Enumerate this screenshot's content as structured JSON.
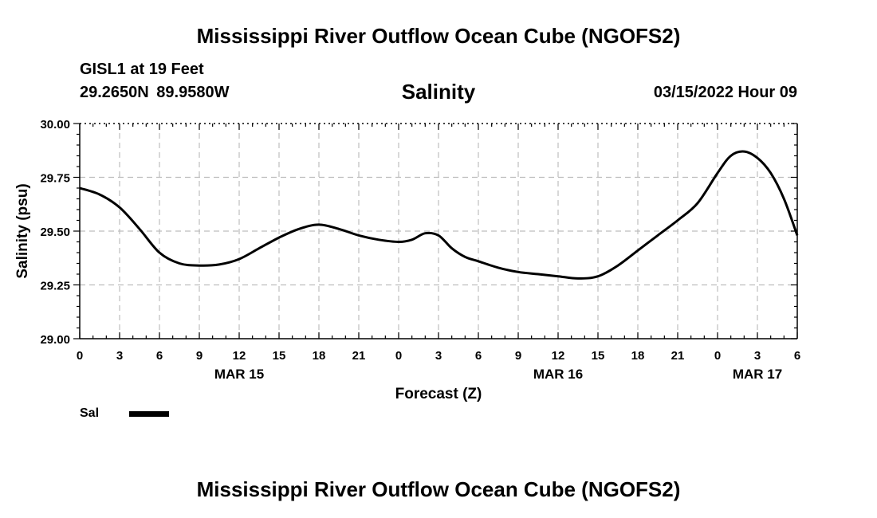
{
  "header": {
    "title": "Mississippi River Outflow Ocean Cube (NGOFS2)",
    "station": "GISL1 at 19 Feet",
    "coordinates": "29.2650N  89.9580W",
    "variable": "Salinity",
    "datetime": "03/15/2022 Hour 09"
  },
  "legend": {
    "label": "Sal"
  },
  "footer": {
    "title": "Mississippi River Outflow Ocean Cube (NGOFS2)"
  },
  "chart_data": {
    "type": "line",
    "title": "Salinity",
    "xlabel": "Forecast (Z)",
    "ylabel": "Salinity (psu)",
    "xlim": [
      0,
      54
    ],
    "ylim": [
      29.0,
      30.0
    ],
    "xticks": [
      0,
      3,
      6,
      9,
      12,
      15,
      18,
      21,
      24,
      27,
      30,
      33,
      36,
      39,
      42,
      45,
      48,
      51,
      54
    ],
    "xtick_labels": [
      "0",
      "3",
      "6",
      "9",
      "12",
      "15",
      "18",
      "21",
      "0",
      "3",
      "6",
      "9",
      "12",
      "15",
      "18",
      "21",
      "0",
      "3",
      "6"
    ],
    "yticks": [
      29.0,
      29.25,
      29.5,
      29.75,
      30.0
    ],
    "ytick_labels": [
      "29.00",
      "29.25",
      "29.50",
      "29.75",
      "30.00"
    ],
    "day_labels": [
      {
        "x": 12,
        "label": "MAR 15"
      },
      {
        "x": 36,
        "label": "MAR 16"
      },
      {
        "x": 51,
        "label": "MAR 17"
      }
    ],
    "grid": true,
    "series": [
      {
        "name": "Sal",
        "x": [
          0,
          1.5,
          3,
          4.5,
          6,
          7.5,
          9,
          10.5,
          12,
          13.5,
          15,
          16.5,
          18,
          19.5,
          21,
          22.5,
          24,
          25,
          26,
          27,
          28,
          29,
          30,
          31.5,
          33,
          34.5,
          36,
          37.5,
          39,
          40.5,
          42,
          43.5,
          45,
          46.5,
          48,
          49,
          50,
          51,
          52,
          53,
          54
        ],
        "values": [
          29.7,
          29.67,
          29.61,
          29.51,
          29.4,
          29.35,
          29.34,
          29.345,
          29.37,
          29.42,
          29.47,
          29.51,
          29.53,
          29.51,
          29.48,
          29.46,
          29.45,
          29.46,
          29.49,
          29.48,
          29.42,
          29.38,
          29.36,
          29.33,
          29.31,
          29.3,
          29.29,
          29.28,
          29.29,
          29.34,
          29.41,
          29.48,
          29.55,
          29.63,
          29.77,
          29.85,
          29.87,
          29.84,
          29.77,
          29.65,
          29.48
        ]
      }
    ]
  }
}
